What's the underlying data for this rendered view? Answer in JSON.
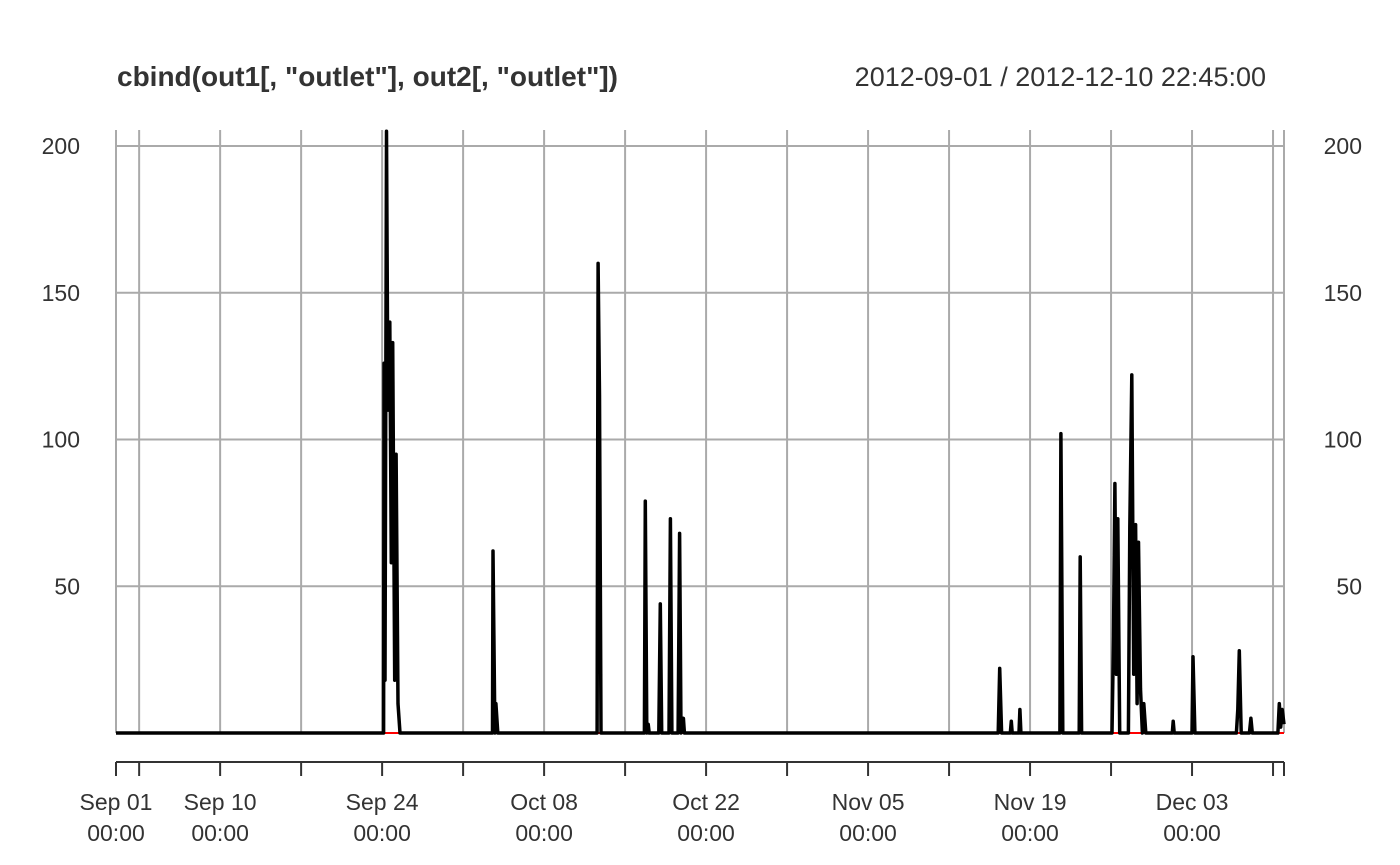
{
  "chart_data": {
    "type": "line",
    "title": "cbind(out1[, \"outlet\"], out2[, \"outlet\"])",
    "date_range": "2012-09-01 / 2012-12-10 22:45:00",
    "x_start": "2012-09-01T00:00",
    "x_end": "2012-12-10T22:45",
    "ylim": [
      0,
      200
    ],
    "yticks": [
      {
        "value": 50,
        "label": "50"
      },
      {
        "value": 100,
        "label": "100"
      },
      {
        "value": 150,
        "label": "150"
      },
      {
        "value": 200,
        "label": "200"
      }
    ],
    "xticks": [
      {
        "date": "2012-09-01T00:00",
        "label": "Sep 01",
        "sublabel": "00:00"
      },
      {
        "date": "2012-09-10T00:00",
        "label": "Sep 10",
        "sublabel": "00:00"
      },
      {
        "date": "2012-09-24T00:00",
        "label": "Sep 24",
        "sublabel": "00:00"
      },
      {
        "date": "2012-10-08T00:00",
        "label": "Oct 08",
        "sublabel": "00:00"
      },
      {
        "date": "2012-10-22T00:00",
        "label": "Oct 22",
        "sublabel": "00:00"
      },
      {
        "date": "2012-11-05T00:00",
        "label": "Nov 05",
        "sublabel": "00:00"
      },
      {
        "date": "2012-11-19T00:00",
        "label": "Nov 19",
        "sublabel": "00:00"
      },
      {
        "date": "2012-12-03T00:00",
        "label": "Dec 03",
        "sublabel": "00:00"
      }
    ],
    "minor_ticks": [
      "2012-09-03T00:00",
      "2012-09-17T00:00",
      "2012-10-01T00:00",
      "2012-10-15T00:00",
      "2012-10-29T00:00",
      "2012-11-12T00:00",
      "2012-11-26T00:00",
      "2012-12-10T00:00",
      "2012-12-10T22:45"
    ],
    "grid": true,
    "series": [
      {
        "color": "#000000",
        "points": [
          [
            "2012-09-01T00:00",
            0
          ],
          [
            "2012-09-24T03:00",
            0
          ],
          [
            "2012-09-24T04:00",
            126
          ],
          [
            "2012-09-24T06:00",
            18
          ],
          [
            "2012-09-24T09:00",
            205
          ],
          [
            "2012-09-24T12:00",
            110
          ],
          [
            "2012-09-24T16:00",
            140
          ],
          [
            "2012-09-24T19:00",
            58
          ],
          [
            "2012-09-24T22:00",
            133
          ],
          [
            "2012-09-25T02:00",
            18
          ],
          [
            "2012-09-25T05:00",
            95
          ],
          [
            "2012-09-25T09:00",
            10
          ],
          [
            "2012-09-25T13:00",
            0
          ],
          [
            "2012-10-03T13:00",
            0
          ],
          [
            "2012-10-03T14:00",
            62
          ],
          [
            "2012-10-03T18:00",
            0
          ],
          [
            "2012-10-03T20:00",
            10
          ],
          [
            "2012-10-04T00:00",
            0
          ],
          [
            "2012-10-12T14:00",
            0
          ],
          [
            "2012-10-12T16:00",
            160
          ],
          [
            "2012-10-12T19:00",
            115
          ],
          [
            "2012-10-12T22:00",
            0
          ],
          [
            "2012-10-16T16:00",
            0
          ],
          [
            "2012-10-16T18:00",
            79
          ],
          [
            "2012-10-16T21:00",
            0
          ],
          [
            "2012-10-17T00:00",
            3
          ],
          [
            "2012-10-17T02:00",
            0
          ],
          [
            "2012-10-17T22:00",
            0
          ],
          [
            "2012-10-18T01:00",
            44
          ],
          [
            "2012-10-18T04:00",
            0
          ],
          [
            "2012-10-18T19:00",
            0
          ],
          [
            "2012-10-18T22:00",
            73
          ],
          [
            "2012-10-19T01:00",
            0
          ],
          [
            "2012-10-19T14:00",
            0
          ],
          [
            "2012-10-19T17:00",
            68
          ],
          [
            "2012-10-19T20:00",
            0
          ],
          [
            "2012-10-20T01:00",
            5
          ],
          [
            "2012-10-20T03:00",
            0
          ],
          [
            "2012-11-16T06:00",
            0
          ],
          [
            "2012-11-16T09:00",
            22
          ],
          [
            "2012-11-16T13:00",
            0
          ],
          [
            "2012-11-17T07:00",
            0
          ],
          [
            "2012-11-17T09:00",
            4
          ],
          [
            "2012-11-17T11:00",
            0
          ],
          [
            "2012-11-18T01:00",
            0
          ],
          [
            "2012-11-18T03:00",
            8
          ],
          [
            "2012-11-18T05:00",
            0
          ],
          [
            "2012-11-21T14:00",
            0
          ],
          [
            "2012-11-21T16:00",
            102
          ],
          [
            "2012-11-21T20:00",
            0
          ],
          [
            "2012-11-23T06:00",
            0
          ],
          [
            "2012-11-23T08:00",
            60
          ],
          [
            "2012-11-23T11:00",
            0
          ],
          [
            "2012-11-26T02:00",
            0
          ],
          [
            "2012-11-26T05:00",
            33
          ],
          [
            "2012-11-26T08:00",
            85
          ],
          [
            "2012-11-26T11:00",
            20
          ],
          [
            "2012-11-26T14:00",
            73
          ],
          [
            "2012-11-26T18:00",
            0
          ],
          [
            "2012-11-27T12:00",
            0
          ],
          [
            "2012-11-27T15:00",
            70
          ],
          [
            "2012-11-27T19:00",
            122
          ],
          [
            "2012-11-27T23:00",
            20
          ],
          [
            "2012-11-28T03:00",
            71
          ],
          [
            "2012-11-28T06:00",
            10
          ],
          [
            "2012-11-28T09:00",
            65
          ],
          [
            "2012-11-28T13:00",
            15
          ],
          [
            "2012-11-28T17:00",
            0
          ],
          [
            "2012-11-28T20:00",
            10
          ],
          [
            "2012-11-29T00:00",
            0
          ],
          [
            "2012-12-01T07:00",
            0
          ],
          [
            "2012-12-01T09:00",
            4
          ],
          [
            "2012-12-01T11:00",
            0
          ],
          [
            "2012-12-03T00:00",
            0
          ],
          [
            "2012-12-03T02:00",
            26
          ],
          [
            "2012-12-03T06:00",
            0
          ],
          [
            "2012-12-06T20:00",
            0
          ],
          [
            "2012-12-06T23:00",
            8
          ],
          [
            "2012-12-07T02:00",
            28
          ],
          [
            "2012-12-07T06:00",
            0
          ],
          [
            "2012-12-07T23:00",
            0
          ],
          [
            "2012-12-08T02:00",
            5
          ],
          [
            "2012-12-08T05:00",
            0
          ],
          [
            "2012-12-10T10:00",
            0
          ],
          [
            "2012-12-10T13:00",
            10
          ],
          [
            "2012-12-10T16:00",
            2
          ],
          [
            "2012-12-10T19:00",
            8
          ],
          [
            "2012-12-10T22:45",
            3
          ]
        ]
      },
      {
        "color": "#ff0000",
        "points": [
          [
            "2012-09-01T00:00",
            0
          ],
          [
            "2012-12-10T22:45",
            0
          ]
        ]
      }
    ]
  }
}
